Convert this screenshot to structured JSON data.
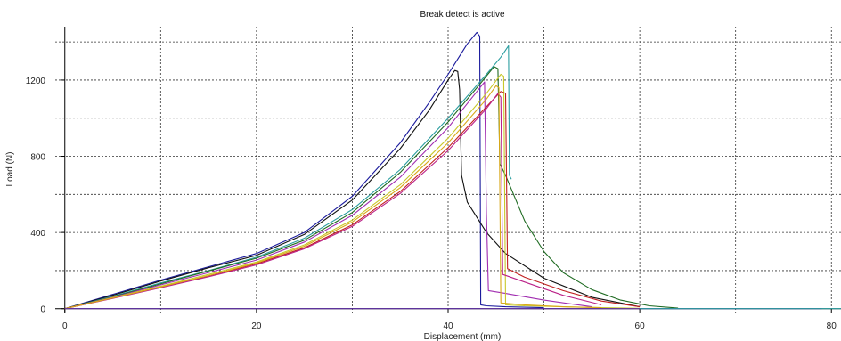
{
  "chart_data": {
    "type": "line",
    "title": "Break detect is active",
    "xlabel": "Displacement (mm)",
    "ylabel": "Load (N)",
    "xlim": [
      -1,
      81
    ],
    "ylim": [
      -20,
      1480
    ],
    "xticks": [
      0,
      20,
      40,
      60,
      80
    ],
    "yticks": [
      0,
      400,
      800,
      1200
    ],
    "grid": true,
    "grid_style": "dashed",
    "grid_x": [
      10,
      20,
      30,
      40,
      50,
      60,
      70,
      80
    ],
    "grid_y": [
      200,
      400,
      600,
      800,
      1000,
      1200,
      1400
    ],
    "legend": "none",
    "series": [
      {
        "color": "#1a1a9c",
        "x": [
          0,
          5,
          10,
          15,
          20,
          25,
          30,
          35,
          38,
          40,
          42,
          43,
          43.3,
          43.4,
          44,
          46,
          50
        ],
        "y": [
          0,
          75,
          150,
          220,
          290,
          400,
          590,
          870,
          1080,
          1230,
          1390,
          1450,
          1430,
          20,
          15,
          10,
          5
        ]
      },
      {
        "color": "#111111",
        "x": [
          0,
          5,
          10,
          15,
          20,
          25,
          30,
          35,
          38,
          40,
          40.7,
          41,
          41.2,
          41.4,
          42,
          44,
          46,
          50,
          55,
          60
        ],
        "y": [
          0,
          70,
          145,
          215,
          280,
          390,
          570,
          840,
          1040,
          1200,
          1250,
          1245,
          1150,
          700,
          560,
          400,
          290,
          160,
          60,
          10
        ]
      },
      {
        "color": "#2a9d9f",
        "x": [
          0,
          5,
          10,
          15,
          20,
          25,
          30,
          35,
          40,
          44,
          45.5,
          46.3,
          46.4,
          46.6
        ],
        "y": [
          0,
          65,
          135,
          200,
          270,
          370,
          520,
          730,
          1000,
          1230,
          1320,
          1380,
          700,
          680
        ]
      },
      {
        "color": "#1f6b22",
        "x": [
          0,
          5,
          10,
          15,
          20,
          25,
          30,
          35,
          40,
          43,
          44.8,
          45.2,
          45.4,
          46,
          48,
          50,
          52,
          55,
          58,
          61,
          64
        ],
        "y": [
          0,
          62,
          130,
          198,
          265,
          360,
          505,
          715,
          980,
          1160,
          1270,
          1260,
          760,
          700,
          460,
          300,
          190,
          100,
          45,
          15,
          3
        ]
      },
      {
        "color": "#a02cb0",
        "x": [
          0,
          5,
          10,
          15,
          20,
          25,
          30,
          35,
          40,
          43,
          43.8,
          44,
          44.2,
          46,
          50,
          55
        ],
        "y": [
          0,
          60,
          125,
          190,
          255,
          350,
          490,
          690,
          950,
          1140,
          1190,
          500,
          95,
          80,
          45,
          10
        ]
      },
      {
        "color": "#c8c82a",
        "x": [
          0,
          5,
          10,
          15,
          20,
          25,
          30,
          35,
          40,
          44,
          45.5,
          45.8,
          46,
          48,
          52,
          56,
          60
        ],
        "y": [
          0,
          58,
          118,
          180,
          245,
          335,
          465,
          650,
          895,
          1130,
          1230,
          1220,
          20,
          15,
          10,
          5,
          2
        ]
      },
      {
        "color": "#c01f1f",
        "x": [
          0,
          5,
          10,
          15,
          20,
          25,
          30,
          35,
          40,
          44,
          45.5,
          46,
          46.2,
          48,
          52,
          56,
          60
        ],
        "y": [
          0,
          55,
          112,
          172,
          235,
          320,
          440,
          615,
          845,
          1060,
          1140,
          1130,
          210,
          165,
          95,
          40,
          10
        ]
      },
      {
        "color": "#bb2288",
        "x": [
          0,
          5,
          10,
          15,
          20,
          25,
          30,
          35,
          40,
          44,
          45.2,
          45.5,
          45.7,
          48,
          52,
          56
        ],
        "y": [
          0,
          54,
          110,
          168,
          230,
          315,
          432,
          605,
          830,
          1050,
          1130,
          1110,
          180,
          140,
          70,
          20
        ]
      },
      {
        "color": "#d8a818",
        "x": [
          0,
          5,
          10,
          15,
          20,
          25,
          30,
          35,
          40,
          44,
          45,
          45.3,
          45.5,
          48,
          52,
          56
        ],
        "y": [
          0,
          56,
          114,
          174,
          240,
          328,
          455,
          635,
          870,
          1100,
          1170,
          1160,
          30,
          20,
          10,
          5
        ]
      },
      {
        "color": "#5a2aa0",
        "x": [
          0,
          10,
          20,
          30,
          40,
          50,
          60,
          70,
          79
        ],
        "y": [
          0,
          0,
          0,
          0,
          0,
          0,
          0,
          0,
          0
        ]
      },
      {
        "color": "#2a9d9f",
        "x": [
          60,
          70,
          80,
          81
        ],
        "y": [
          0,
          0,
          0,
          0
        ]
      }
    ]
  }
}
